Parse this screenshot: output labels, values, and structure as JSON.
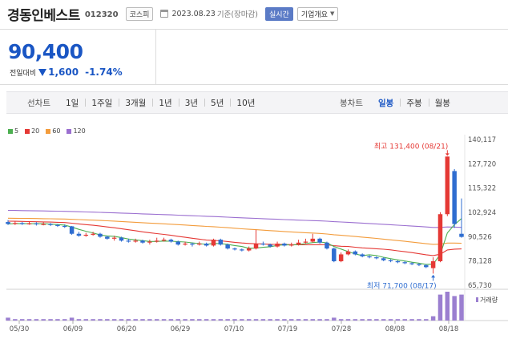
{
  "header": {
    "name": "경동인베스트",
    "code": "012320",
    "market": "코스피",
    "date": "2023.08.23",
    "date_basis": "기준(장마감)",
    "realtime_label": "실시간",
    "company_label": "기업개요"
  },
  "price": {
    "current": "90,400",
    "change_label": "전일대비",
    "change": "1,600",
    "change_pct": "-1.74%",
    "direction": "down"
  },
  "toolbar": {
    "line_label": "선차트",
    "periods": [
      "1일",
      "1주일",
      "3개월",
      "1년",
      "3년",
      "5년",
      "10년"
    ],
    "candle_label": "봉차트",
    "candle_periods": [
      "일봉",
      "주봉",
      "월봉"
    ],
    "active_candle": "일봉"
  },
  "colors": {
    "up": "#e53935",
    "down": "#2f6dd0",
    "ma5": "#4caf50",
    "ma20": "#e53935",
    "ma60": "#f39c3c",
    "ma120": "#9b6fd0",
    "volume": "#9b7fd0"
  },
  "chart_data": {
    "type": "candlestick",
    "legend": [
      {
        "label": "5",
        "color": "#4caf50"
      },
      {
        "label": "20",
        "color": "#e53935"
      },
      {
        "label": "60",
        "color": "#f39c3c"
      },
      {
        "label": "120",
        "color": "#9b6fd0"
      }
    ],
    "y_ticks": [
      140117,
      127720,
      115322,
      102924,
      90526,
      78128,
      65730
    ],
    "y_tick_labels": [
      "140,117",
      "127,720",
      "115,322",
      "102,924",
      "90,526",
      "78,128",
      "65,730"
    ],
    "ylim": [
      65730,
      140117
    ],
    "x_tick_labels": [
      "05/30",
      "06/09",
      "06/20",
      "06/29",
      "07/10",
      "07/19",
      "07/28",
      "08/08",
      "08/18"
    ],
    "high_annotation": "최고 131,400 (08/21)",
    "low_annotation": "최저 71,700 (08/17)",
    "volume_label": "거래량",
    "candles": [
      [
        98000,
        97000,
        99000,
        96500
      ],
      [
        97000,
        97500,
        98500,
        96500
      ],
      [
        97500,
        97000,
        98000,
        96500
      ],
      [
        97000,
        97300,
        98200,
        96600
      ],
      [
        97300,
        96800,
        97900,
        96200
      ],
      [
        96800,
        97000,
        97800,
        96300
      ],
      [
        97000,
        96500,
        97500,
        96000
      ],
      [
        96500,
        96000,
        97000,
        95500
      ],
      [
        96000,
        95800,
        96800,
        95000
      ],
      [
        95800,
        92000,
        96000,
        91500
      ],
      [
        92000,
        91000,
        93000,
        90500
      ],
      [
        91000,
        91500,
        92500,
        90500
      ],
      [
        91500,
        92000,
        93000,
        91000
      ],
      [
        92000,
        90500,
        92500,
        90000
      ],
      [
        90500,
        89500,
        91000,
        89000
      ],
      [
        89500,
        90000,
        91000,
        88500
      ],
      [
        90000,
        88500,
        90500,
        88000
      ],
      [
        88500,
        88000,
        89500,
        87500
      ],
      [
        88000,
        88500,
        89500,
        87500
      ],
      [
        88500,
        87500,
        89000,
        87000
      ],
      [
        87500,
        88000,
        89000,
        86500
      ],
      [
        88000,
        88500,
        90000,
        87500
      ],
      [
        88500,
        89000,
        90000,
        88000
      ],
      [
        89000,
        88000,
        89500,
        87500
      ],
      [
        88000,
        86500,
        88500,
        86000
      ],
      [
        86500,
        87000,
        88000,
        86000
      ],
      [
        87000,
        86500,
        87500,
        85500
      ],
      [
        86500,
        87000,
        88000,
        86000
      ],
      [
        87000,
        86000,
        87500,
        85500
      ],
      [
        86000,
        89000,
        89500,
        85500
      ],
      [
        89000,
        86500,
        89500,
        86000
      ],
      [
        86500,
        84500,
        87000,
        84000
      ],
      [
        84500,
        84000,
        85000,
        83500
      ],
      [
        84000,
        83500,
        84500,
        83000
      ],
      [
        83500,
        84500,
        85500,
        83000
      ],
      [
        84500,
        87000,
        94000,
        84000
      ],
      [
        87000,
        86500,
        88000,
        86000
      ],
      [
        86500,
        85500,
        87000,
        85000
      ],
      [
        85500,
        87000,
        88000,
        85000
      ],
      [
        87000,
        86000,
        87500,
        85500
      ],
      [
        86000,
        86500,
        87500,
        85500
      ],
      [
        86500,
        87500,
        89000,
        86000
      ],
      [
        87500,
        88000,
        89500,
        87000
      ],
      [
        88000,
        89500,
        92000,
        87500
      ],
      [
        89500,
        87500,
        90000,
        87000
      ],
      [
        87500,
        84500,
        88000,
        84000
      ],
      [
        84500,
        78000,
        85000,
        77500
      ],
      [
        78000,
        81500,
        82500,
        77500
      ],
      [
        81500,
        83000,
        84000,
        81000
      ],
      [
        83000,
        81500,
        83500,
        81000
      ],
      [
        81500,
        80500,
        82000,
        80000
      ],
      [
        80500,
        80000,
        81000,
        79500
      ],
      [
        80000,
        79500,
        80500,
        79000
      ],
      [
        79500,
        78500,
        80000,
        78000
      ],
      [
        78500,
        78000,
        79000,
        77500
      ],
      [
        78000,
        77500,
        78500,
        77000
      ],
      [
        77500,
        77000,
        78000,
        76500
      ],
      [
        77000,
        76500,
        77500,
        76000
      ],
      [
        76500,
        76000,
        77000,
        75500
      ],
      [
        76000,
        75000,
        76500,
        74500
      ],
      [
        74500,
        78000,
        80000,
        71700
      ],
      [
        78000,
        102000,
        103000,
        77500
      ],
      [
        102000,
        131400,
        131400,
        101000
      ],
      [
        124000,
        97000,
        125000,
        95000
      ],
      [
        92000,
        90400,
        110000,
        90000
      ]
    ],
    "volume": [
      2,
      1,
      1,
      1,
      1,
      1,
      1,
      1,
      1,
      2,
      1,
      1,
      1,
      1,
      1,
      1,
      1,
      1,
      1,
      1,
      1,
      1,
      1,
      1,
      1,
      1,
      1,
      1,
      1,
      1,
      1,
      1,
      1,
      1,
      1,
      1,
      1,
      1,
      1,
      1,
      1,
      1,
      1,
      1,
      1,
      1,
      2,
      1,
      1,
      1,
      1,
      1,
      1,
      1,
      1,
      1,
      1,
      1,
      1,
      1,
      3,
      18,
      20,
      17,
      18
    ]
  }
}
